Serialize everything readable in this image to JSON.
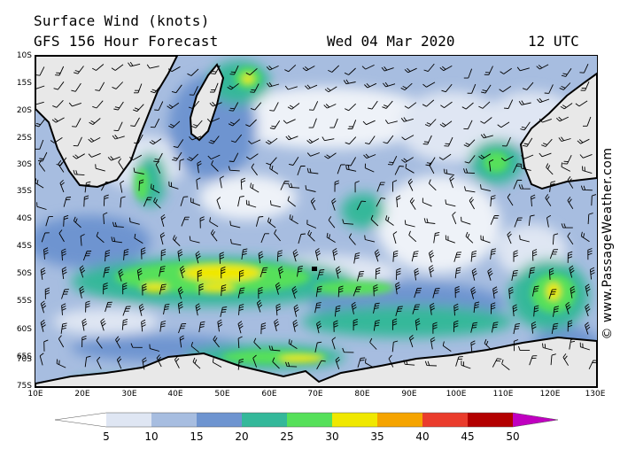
{
  "header": {
    "title": "Surface Wind (knots)",
    "subtitle": "GFS 156 Hour Forecast",
    "date": "Wed 04 Mar 2020",
    "time": "12 UTC"
  },
  "credit": "© www.PassageWeather.com",
  "map": {
    "lat_labels": [
      "10S",
      "15S",
      "20S",
      "25S",
      "30S",
      "35S",
      "40S",
      "45S",
      "50S",
      "55S",
      "60S",
      "65S",
      "70S",
      "75S"
    ],
    "lon_labels": [
      "10E",
      "20E",
      "30E",
      "40E",
      "50E",
      "60E",
      "70E",
      "80E",
      "90E",
      "100E",
      "110E",
      "120E",
      "130E"
    ]
  },
  "legend": {
    "ticks": [
      "5",
      "10",
      "15",
      "20",
      "25",
      "30",
      "35",
      "40",
      "45",
      "50"
    ],
    "colors": [
      "#ffffff",
      "#dfe6f3",
      "#a7bde0",
      "#6e94d0",
      "#34b89a",
      "#56e05a",
      "#f0e800",
      "#f5a400",
      "#ea3c2c",
      "#b30000",
      "#c000c0"
    ]
  },
  "palette": {
    "land": "#e8e8e8",
    "ocean_light": "#eef2f8",
    "coast": "#000000"
  }
}
